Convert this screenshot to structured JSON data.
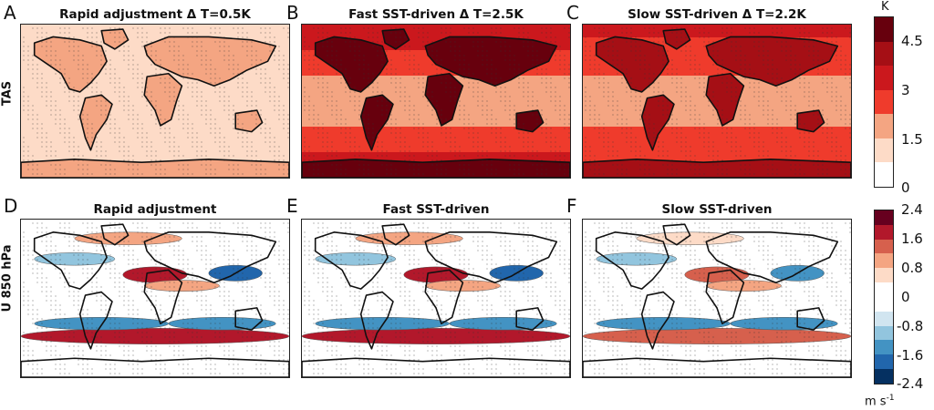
{
  "rows": [
    {
      "label": "TAS"
    },
    {
      "label": "U 850 hPa"
    }
  ],
  "panels": [
    {
      "letter": "A",
      "title": "Rapid adjustment Δ T=0.5K",
      "field": "tas",
      "intensity": 0.2
    },
    {
      "letter": "B",
      "title": "Fast SST-driven Δ T=2.5K",
      "field": "tas",
      "intensity": 0.75
    },
    {
      "letter": "C",
      "title": "Slow SST-driven Δ T=2.2K",
      "field": "tas",
      "intensity": 0.65
    },
    {
      "letter": "D",
      "title": "Rapid adjustment",
      "field": "u850",
      "intensity": 0.8
    },
    {
      "letter": "E",
      "title": "Fast SST-driven",
      "field": "u850",
      "intensity": 1.0
    },
    {
      "letter": "F",
      "title": "Slow SST-driven",
      "field": "u850",
      "intensity": 0.5
    }
  ],
  "colorbars": {
    "tas": {
      "unit": "K",
      "ticks": [
        "4.5",
        "3",
        "1.5",
        "0"
      ],
      "colors": [
        "#67000d",
        "#a50f15",
        "#cb181d",
        "#ef3b2c",
        "#f4a582",
        "#fddbc7",
        "#ffffff"
      ]
    },
    "u850": {
      "unit": "m s",
      "unit_sup": "-1",
      "ticks": [
        "2.4",
        "1.6",
        "0.8",
        "0",
        "-0.8",
        "-1.6",
        "-2.4"
      ],
      "colors": [
        "#67001f",
        "#b2182b",
        "#d6604d",
        "#f4a582",
        "#fddbc7",
        "#ffffff",
        "#ffffff",
        "#d1e5f0",
        "#92c5de",
        "#4393c3",
        "#2166ac",
        "#053061"
      ]
    }
  },
  "colors": {
    "land_outline": "#111111",
    "stipple": "#333333"
  }
}
